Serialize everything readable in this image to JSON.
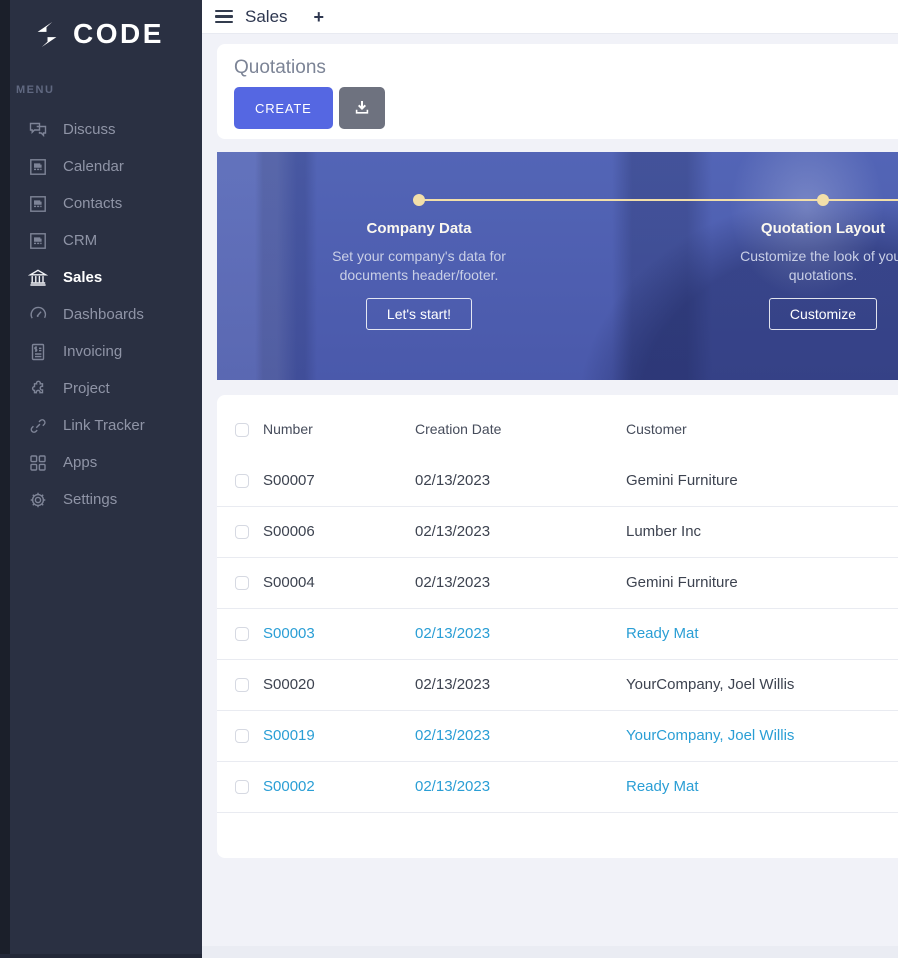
{
  "brand": {
    "name": "CODE"
  },
  "sidebar": {
    "menu_label": "MENU",
    "items": [
      {
        "label": "Discuss",
        "icon": "discuss-icon",
        "active": false
      },
      {
        "label": "Calendar",
        "icon": "broken-image-icon",
        "active": false
      },
      {
        "label": "Contacts",
        "icon": "broken-image-icon",
        "active": false
      },
      {
        "label": "CRM",
        "icon": "broken-image-icon",
        "active": false
      },
      {
        "label": "Sales",
        "icon": "sales-bank-icon",
        "active": true
      },
      {
        "label": "Dashboards",
        "icon": "gauge-icon",
        "active": false
      },
      {
        "label": "Invoicing",
        "icon": "invoice-icon",
        "active": false
      },
      {
        "label": "Project",
        "icon": "puzzle-icon",
        "active": false
      },
      {
        "label": "Link Tracker",
        "icon": "link-icon",
        "active": false
      },
      {
        "label": "Apps",
        "icon": "apps-grid-icon",
        "active": false
      },
      {
        "label": "Settings",
        "icon": "gear-icon",
        "active": false
      }
    ]
  },
  "topbar": {
    "title": "Sales",
    "plus_label": "+"
  },
  "page": {
    "title": "Quotations",
    "create_label": "CREATE",
    "download_icon": "download-icon"
  },
  "onboarding": {
    "steps": [
      {
        "title": "Company Data",
        "description": "Set your company's data for documents header/footer.",
        "button": "Let's start!"
      },
      {
        "title": "Quotation Layout",
        "description": "Customize the look of your quotations.",
        "button": "Customize"
      }
    ]
  },
  "table": {
    "columns": [
      "Number",
      "Creation Date",
      "Customer"
    ],
    "rows": [
      {
        "number": "S00007",
        "date": "02/13/2023",
        "customer": "Gemini Furniture",
        "highlighted": false
      },
      {
        "number": "S00006",
        "date": "02/13/2023",
        "customer": "Lumber Inc",
        "highlighted": false
      },
      {
        "number": "S00004",
        "date": "02/13/2023",
        "customer": "Gemini Furniture",
        "highlighted": false
      },
      {
        "number": "S00003",
        "date": "02/13/2023",
        "customer": "Ready Mat",
        "highlighted": true
      },
      {
        "number": "S00020",
        "date": "02/13/2023",
        "customer": "YourCompany, Joel Willis",
        "highlighted": false
      },
      {
        "number": "S00019",
        "date": "02/13/2023",
        "customer": "YourCompany, Joel Willis",
        "highlighted": true
      },
      {
        "number": "S00002",
        "date": "02/13/2023",
        "customer": "Ready Mat",
        "highlighted": true
      }
    ]
  },
  "colors": {
    "accent": "#5567e2",
    "link": "#2a9ed5",
    "banner_accent": "#f2dfa9",
    "sidebar_bg": "#2a3042"
  }
}
